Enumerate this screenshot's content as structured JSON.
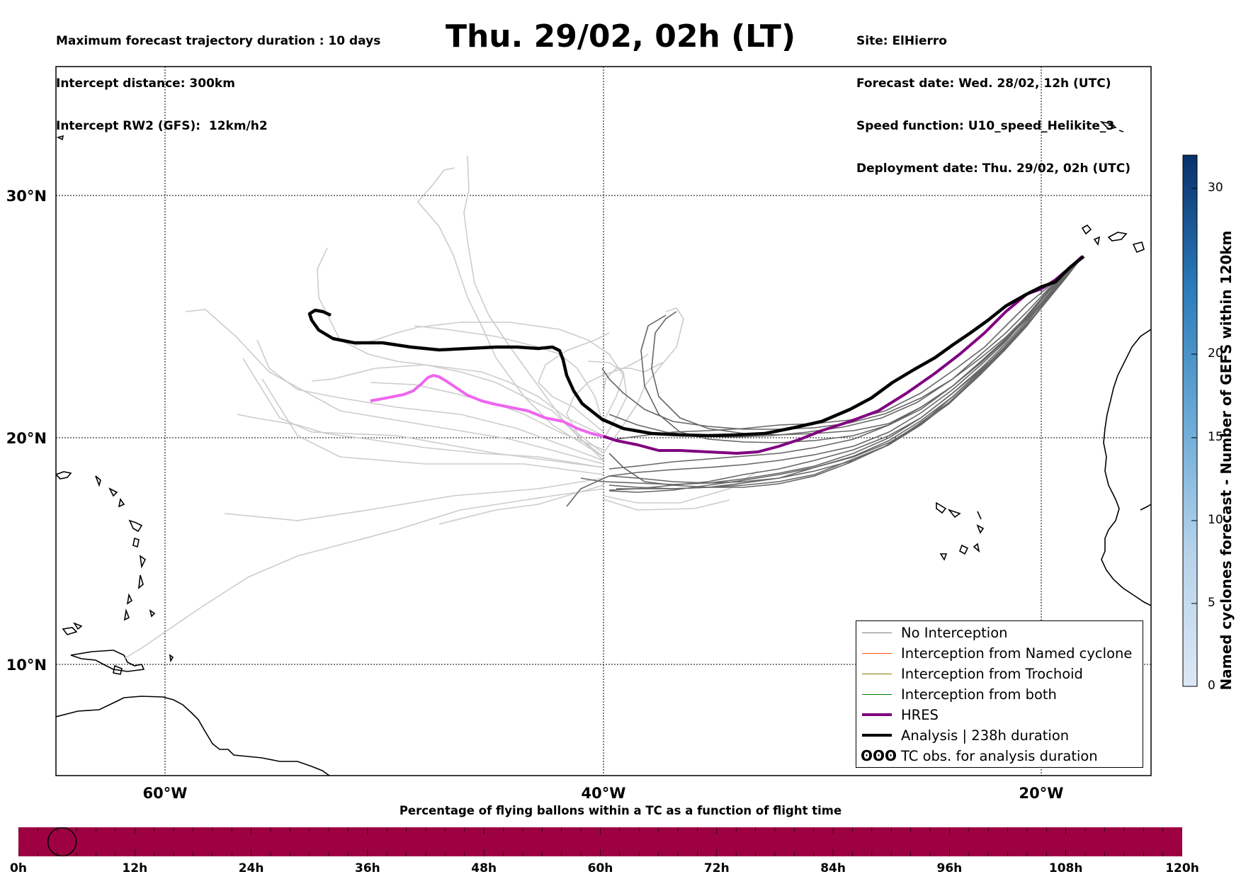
{
  "header": {
    "left_lines": [
      "Maximum forecast trajectory duration : 10 days",
      "Intercept distance: 300km",
      "Intercept RW2 (GFS):  12km/h2"
    ],
    "title": "Thu. 29/02, 02h (LT)",
    "right_lines": [
      "Site: ElHierro",
      "Forecast date: Wed. 28/02, 12h (UTC)",
      "Speed function: U10_speed_Helikite_3",
      "Deployment date: Thu. 29/02, 02h (UTC)"
    ]
  },
  "map": {
    "lon_labels": [
      "60°W",
      "40°W",
      "20°W"
    ],
    "lat_labels": [
      "30°N",
      "20°N",
      "10°N"
    ],
    "lon_ticks": [
      -60,
      -40,
      -20
    ],
    "lat_ticks": [
      30,
      20,
      10
    ],
    "extent": {
      "lon": [
        -65,
        -15
      ],
      "lat": [
        5.5,
        34.8
      ]
    },
    "colors": {
      "analysis": "#000000",
      "hres_path": "#800080",
      "hres_early": "#ee66ee",
      "member_dark": "#666666",
      "member_light": "#cccccc"
    }
  },
  "legend": {
    "items": [
      {
        "label": "No Interception",
        "color": "#808080",
        "style": "thin"
      },
      {
        "label": "Interception from Named cyclone",
        "color": "#ff5511",
        "style": "thin"
      },
      {
        "label": "Interception from Trochoid",
        "color": "#808000",
        "style": "thin"
      },
      {
        "label": "Interception from both",
        "color": "#008000",
        "style": "thin"
      },
      {
        "label": "HRES",
        "color": "#800080",
        "style": "thick"
      },
      {
        "label": "Analysis | 238h duration",
        "color": "#000000",
        "style": "thick"
      },
      {
        "label": "TC obs. for analysis duration",
        "color": "#000000",
        "style": "symbol",
        "symbol": "ʘʘʘ"
      }
    ]
  },
  "colorbar": {
    "label": "Named cyclones forecast - Number of GEFS within 120km",
    "ticks": [
      "0",
      "5",
      "10",
      "15",
      "20",
      "30"
    ],
    "tick_values": [
      0,
      5,
      10,
      15,
      20,
      30
    ]
  },
  "flight_bar": {
    "title": "Percentage of flying ballons within a TC as a function of flight time",
    "labels": [
      "0h",
      "12h",
      "24h",
      "36h",
      "48h",
      "60h",
      "72h",
      "84h",
      "96h",
      "108h",
      "120h"
    ],
    "color": "#9e0142",
    "marker_hour": 4.5
  }
}
